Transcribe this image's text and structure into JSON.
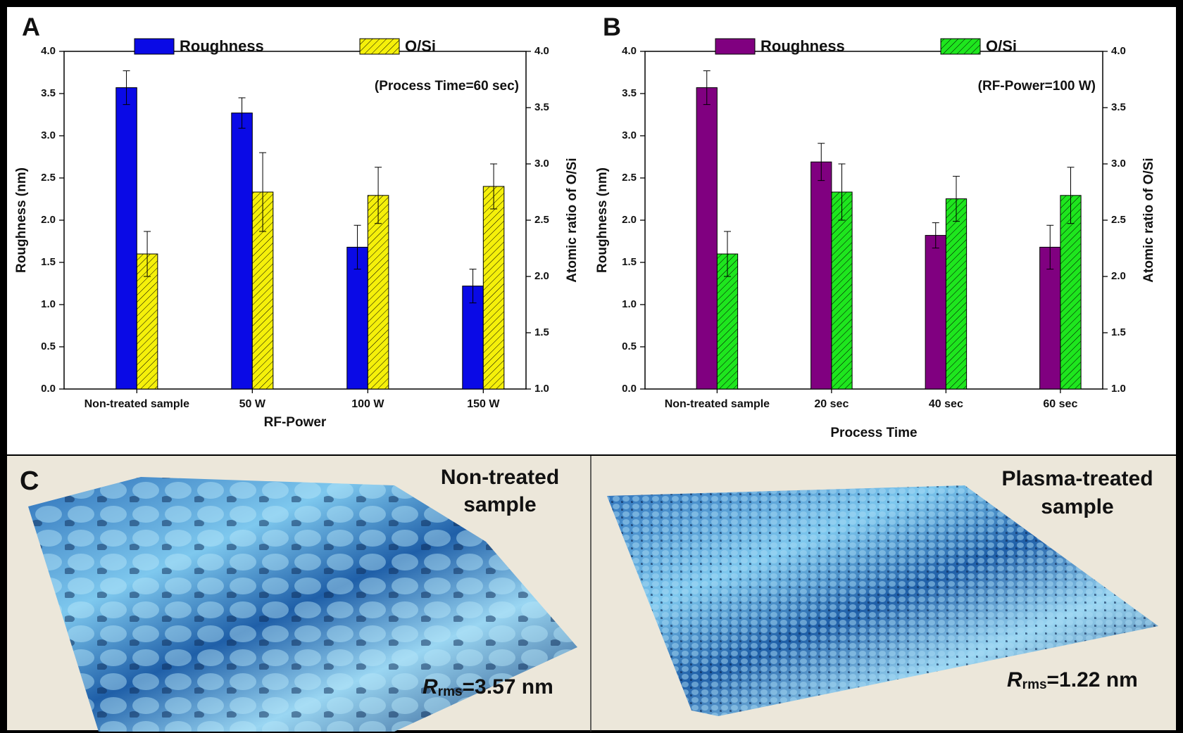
{
  "chart_data": [
    {
      "type": "bar",
      "label": "A",
      "annotation": "(Process Time=60 sec)",
      "x_label": "RF-Power",
      "y_label": "Roughness (nm)",
      "y2_label": "Atomic ratio of O/Si",
      "categories": [
        "Non-treated sample",
        "50 W",
        "100 W",
        "150 W"
      ],
      "series": [
        {
          "name": "Roughness",
          "color": "#0a0ae6",
          "hatch": false,
          "values": [
            3.57,
            3.27,
            1.68,
            1.22
          ],
          "errors": [
            0.2,
            0.18,
            0.26,
            0.2
          ]
        },
        {
          "name": "O/Si",
          "color": "#f5f00a",
          "hatch": true,
          "axis": "y2",
          "values": [
            2.2,
            2.75,
            2.72,
            2.8
          ],
          "errors": [
            0.2,
            0.35,
            0.25,
            0.2
          ]
        }
      ],
      "ylim": [
        0,
        4
      ],
      "yticks": [
        {
          "value": 0,
          "label": "0.0"
        },
        0.5,
        {
          "value": 1,
          "label": "1.0"
        },
        1.5,
        {
          "value": 2,
          "label": "2.0"
        },
        2.5,
        {
          "value": 3,
          "label": "3.0"
        },
        3.5,
        {
          "value": 4,
          "label": "4.0"
        }
      ],
      "y2lim": [
        1,
        4
      ],
      "y2ticks": [
        {
          "value": 1,
          "label": "1.0"
        },
        1.5,
        {
          "value": 2,
          "label": "2.0"
        },
        2.5,
        {
          "value": 3,
          "label": "3.0"
        },
        3.5,
        {
          "value": 4,
          "label": "4.0"
        }
      ]
    },
    {
      "type": "bar",
      "label": "B",
      "annotation": "(RF-Power=100 W)",
      "x_label": "Process Time",
      "y_label": "Roughness (nm)",
      "y2_label": "Atomic ratio of O/Si",
      "categories": [
        "Non-treated sample",
        "20 sec",
        "40 sec",
        "60 sec"
      ],
      "series": [
        {
          "name": "Roughness",
          "color": "#800080",
          "hatch": false,
          "values": [
            3.57,
            2.69,
            1.82,
            1.68
          ],
          "errors": [
            0.2,
            0.22,
            0.15,
            0.26
          ]
        },
        {
          "name": "O/Si",
          "color": "#1ee61e",
          "hatch": true,
          "axis": "y2",
          "values": [
            2.2,
            2.75,
            2.69,
            2.72
          ],
          "errors": [
            0.2,
            0.25,
            0.2,
            0.25
          ]
        }
      ],
      "ylim": [
        0,
        4
      ],
      "yticks": [
        {
          "value": 0,
          "label": "0.0"
        },
        0.5,
        {
          "value": 1,
          "label": "1.0"
        },
        1.5,
        {
          "value": 2,
          "label": "2.0"
        },
        2.5,
        {
          "value": 3,
          "label": "3.0"
        },
        3.5,
        {
          "value": 4,
          "label": "4.0"
        }
      ],
      "y2lim": [
        1,
        4
      ],
      "y2ticks": [
        {
          "value": 1,
          "label": "1.0"
        },
        1.5,
        {
          "value": 2,
          "label": "2.0"
        },
        2.5,
        {
          "value": 3,
          "label": "3.0"
        },
        3.5,
        {
          "value": 4,
          "label": "4.0"
        }
      ]
    }
  ],
  "panel_c": {
    "label": "C",
    "images": [
      {
        "title_lines": [
          "Non-treated",
          "sample"
        ],
        "symbol": "R",
        "subscript": "rms",
        "value_text": "=3.57 nm"
      },
      {
        "title_lines": [
          "Plasma-treated",
          "sample"
        ],
        "symbol": "R",
        "subscript": "rms",
        "value_text": "=1.22 nm"
      }
    ]
  }
}
